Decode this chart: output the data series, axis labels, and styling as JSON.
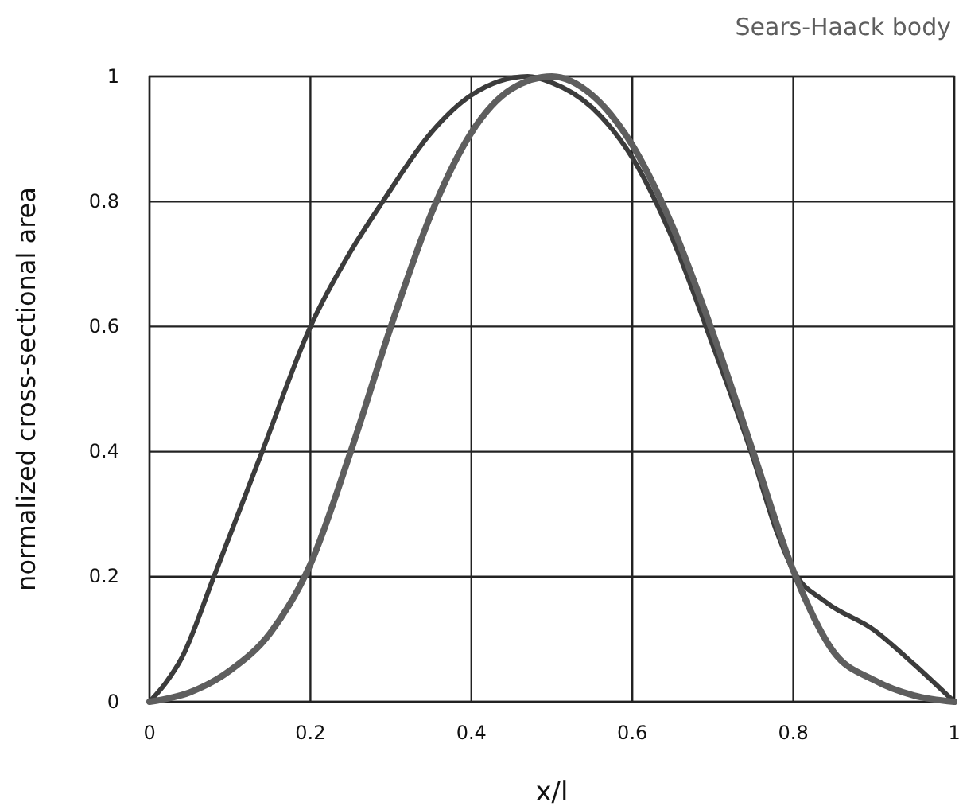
{
  "chart_data": {
    "type": "line",
    "xlabel": "x/l",
    "ylabel": "normalized cross-sectional area",
    "xlim": [
      0,
      1
    ],
    "ylim": [
      0,
      1
    ],
    "xticks": [
      0,
      0.2,
      0.4,
      0.6,
      0.8,
      1
    ],
    "yticks": [
      0,
      0.2,
      0.4,
      0.6,
      0.8,
      1
    ],
    "grid": true,
    "legend": "top right",
    "line_style": "solid",
    "marker": "none",
    "series": [
      {
        "color": "#3c3c3c",
        "x": [
          0,
          0.02,
          0.04,
          0.08,
          0.14,
          0.2,
          0.25,
          0.29,
          0.35,
          0.4,
          0.47,
          0.5,
          0.55,
          0.6,
          0.65,
          0.7,
          0.75,
          0.78,
          0.8,
          0.84,
          0.9,
          0.95,
          1
        ],
        "values": [
          0,
          0.03,
          0.07,
          0.2,
          0.4,
          0.6,
          0.72,
          0.8,
          0.91,
          0.97,
          1,
          0.99,
          0.95,
          0.87,
          0.74,
          0.57,
          0.39,
          0.27,
          0.21,
          0.16,
          0.115,
          0.06,
          0
        ]
      },
      {
        "name": "Sears-Haack body",
        "color": "#5e5e5e",
        "x": [
          0,
          0.05,
          0.1,
          0.15,
          0.2,
          0.25,
          0.3,
          0.35,
          0.4,
          0.45,
          0.5,
          0.55,
          0.6,
          0.65,
          0.7,
          0.75,
          0.8,
          0.85,
          0.9,
          0.95,
          1
        ],
        "values": [
          0,
          0.015,
          0.05,
          0.11,
          0.22,
          0.4,
          0.6,
          0.78,
          0.91,
          0.98,
          1,
          0.97,
          0.89,
          0.76,
          0.59,
          0.4,
          0.21,
          0.08,
          0.035,
          0.01,
          0
        ]
      }
    ]
  }
}
